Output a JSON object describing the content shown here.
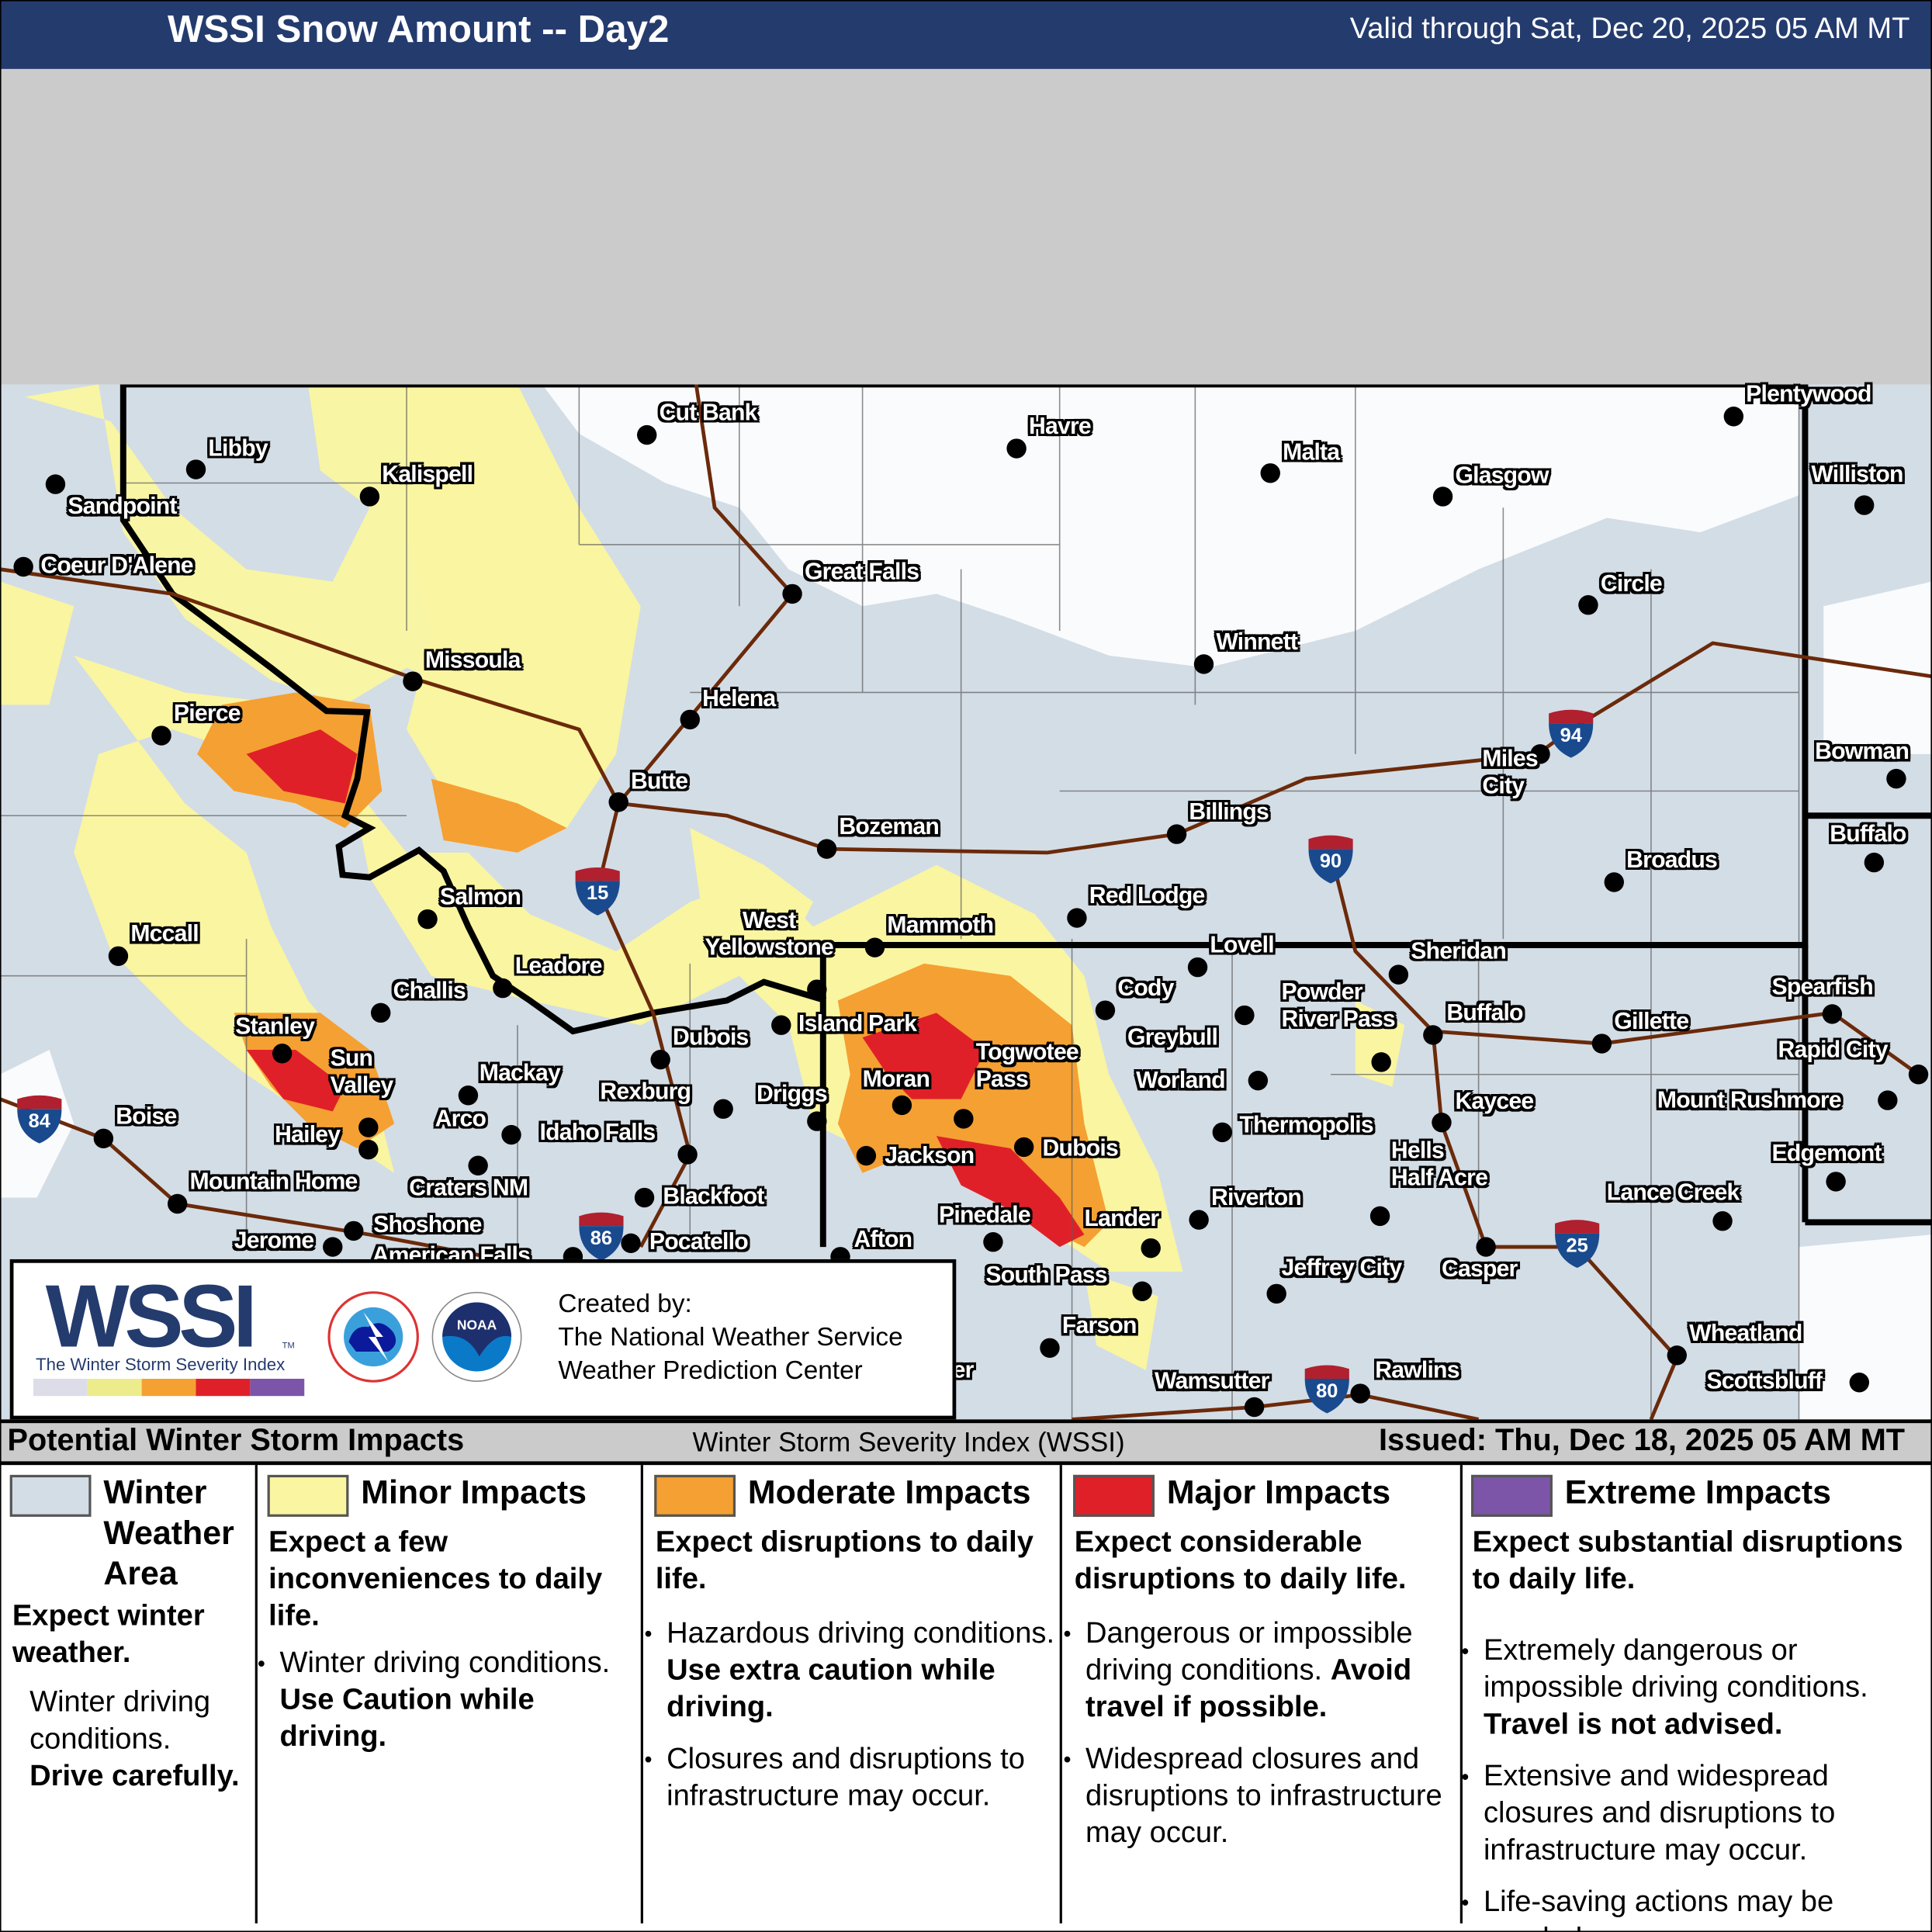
{
  "header": {
    "title": "WSSI Snow Amount -- Day2",
    "valid": "Valid through Sat, Dec 20, 2025 05 AM MT"
  },
  "colors": {
    "winter_weather_area": "#d3dde6",
    "minor": "#faf5a0",
    "moderate": "#f5a032",
    "major": "#e02028",
    "extreme": "#7c55a8",
    "header": "#243b6e",
    "roads": "#6b2a0a"
  },
  "map": {
    "cities": [
      "Cut Bank",
      "Havre",
      "Malta",
      "Glasgow",
      "Plentywood",
      "Williston",
      "Libby",
      "Sandpoint",
      "Kalispell",
      "Coeur D'Alene",
      "Great Falls",
      "Circle",
      "Winnett",
      "Missoula",
      "Helena",
      "Pierce",
      "Bowman",
      "Butte",
      "Miles City",
      "Bozeman",
      "Billings",
      "Buffalo",
      "Broadus",
      "Red Lodge",
      "Salmon",
      "Mammoth",
      "West Yellowstone",
      "Mccall",
      "Leadore",
      "Lovell",
      "Sheridan",
      "Cody",
      "Challis",
      "Spearfish",
      "Island Park",
      "Stanley",
      "Greybull",
      "Powder River Pass",
      "Buffalo",
      "Gillette",
      "Dubois",
      "Rapid City",
      "Sun Valley",
      "Mackay",
      "Togwotee Pass",
      "Moran",
      "Worland",
      "Rexburg",
      "Driggs",
      "Mount Rushmore",
      "Kaycee",
      "Boise",
      "Arco",
      "Hailey",
      "Thermopolis",
      "Idaho Falls",
      "Jackson",
      "Dubois",
      "Edgemont",
      "Craters NM",
      "Mountain Home",
      "Hells Half Acre",
      "Lance Creek",
      "Riverton",
      "Blackfoot",
      "Pinedale",
      "Lander",
      "Jerome",
      "Shoshone",
      "Pocatello",
      "Afton",
      "Casper",
      "Jeffrey City",
      "South Pass",
      "American Falls",
      "Farson",
      "Kemmerer",
      "Wheatland",
      "Scottsbluff",
      "Wamsutter",
      "Rawlins"
    ],
    "interstates": [
      "94",
      "90",
      "15",
      "84",
      "86",
      "80",
      "25"
    ]
  },
  "info": {
    "logo_text": "WSSI",
    "logo_tm": "TM",
    "logo_subtitle": "The Winter Storm Severity Index",
    "nws_seal": "NATIONAL WEATHER SERVICE",
    "noaa_seal": "NOAA",
    "created_by": "Created by:",
    "org1": "The National Weather Service",
    "org2": "Weather Prediction Center"
  },
  "legend": {
    "left_title": "Potential Winter Storm Impacts",
    "center_title": "Winter Storm Severity Index (WSSI)",
    "issued": "Issued: Thu, Dec 18, 2025 05 AM MT",
    "categories": [
      {
        "name": "Winter Weather Area",
        "expect": "Expect winter weather.",
        "bullets": [
          {
            "text": "Winter driving conditions. ",
            "bold": "Drive carefully."
          }
        ]
      },
      {
        "name": "Minor Impacts",
        "expect": "Expect a few inconveniences to daily life.",
        "bullets": [
          {
            "text": "Winter driving conditions. ",
            "bold": "Use Caution while driving."
          }
        ]
      },
      {
        "name": "Moderate Impacts",
        "expect": "Expect disruptions to daily life.",
        "bullets": [
          {
            "text": "Hazardous driving conditions. ",
            "bold": "Use extra caution while driving."
          },
          {
            "text": "Closures and disruptions to infrastructure may occur.",
            "bold": ""
          }
        ]
      },
      {
        "name": "Major Impacts",
        "expect": "Expect considerable disruptions to daily life.",
        "bullets": [
          {
            "text": "Dangerous or impossible driving conditions. ",
            "bold": "Avoid travel if possible."
          },
          {
            "text": "Widespread closures and disruptions to infrastructure may occur.",
            "bold": ""
          }
        ]
      },
      {
        "name": "Extreme Impacts",
        "expect": "Expect substantial disruptions to daily life.",
        "bullets": [
          {
            "text": "Extremely dangerous or impossible driving conditions. ",
            "bold": "Travel is not advised."
          },
          {
            "text": "Extensive and widespread closures and disruptions to infrastructure may occur.",
            "bold": ""
          },
          {
            "text": "Life-saving actions may be needed.",
            "bold": ""
          }
        ]
      }
    ]
  }
}
